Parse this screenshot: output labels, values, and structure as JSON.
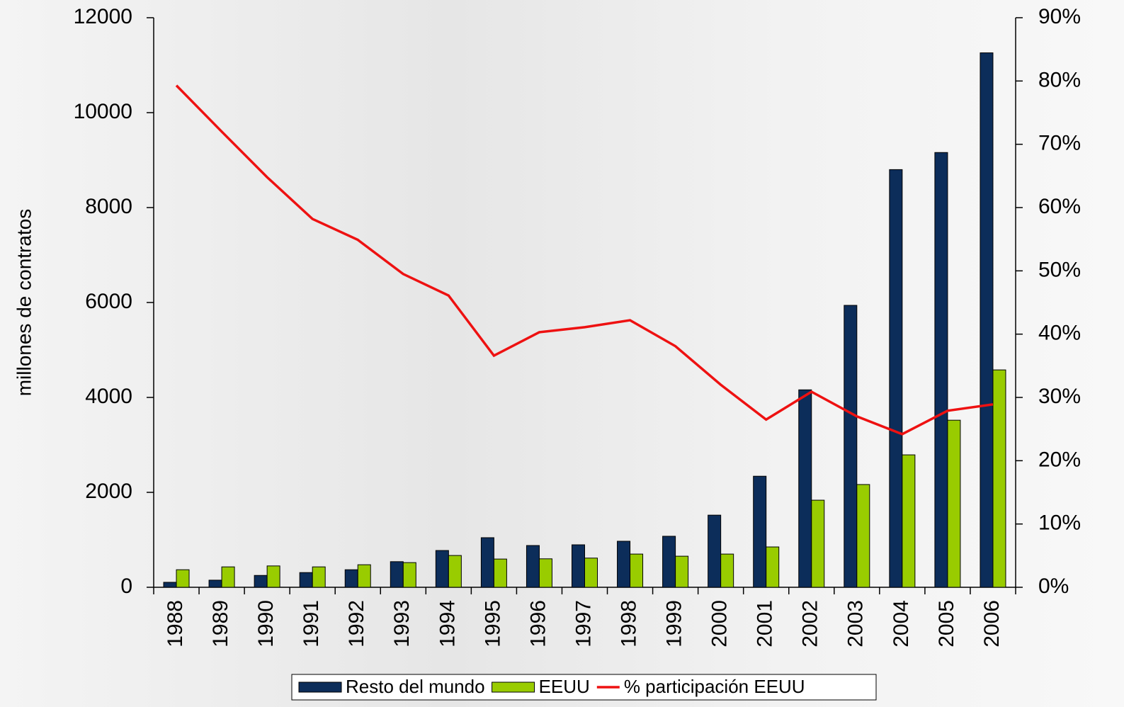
{
  "chart_data": {
    "type": "bar",
    "y_label": "millones de contratos",
    "categories": [
      "1988",
      "1989",
      "1990",
      "1991",
      "1992",
      "1993",
      "1994",
      "1995",
      "1996",
      "1997",
      "1998",
      "1999",
      "2000",
      "2001",
      "2002",
      "2003",
      "2004",
      "2005",
      "2006"
    ],
    "series": [
      {
        "name": "Resto del mundo",
        "color": "#0c2d5a",
        "values": [
          105,
          150,
          250,
          310,
          370,
          540,
          775,
          1045,
          880,
          895,
          970,
          1075,
          1520,
          2340,
          4160,
          5940,
          8800,
          9160,
          11260
        ]
      },
      {
        "name": "EEUU",
        "color": "#99cc00",
        "values": [
          370,
          430,
          450,
          430,
          475,
          520,
          670,
          595,
          600,
          615,
          700,
          655,
          700,
          850,
          1835,
          2165,
          2790,
          3520,
          4580
        ]
      },
      {
        "name": "% participación EEUU",
        "color": "#ee1111",
        "type": "line",
        "axis": "y2",
        "values": [
          79.3,
          72,
          64.8,
          58.2,
          54.9,
          49.5,
          46.1,
          36.6,
          40.3,
          41.1,
          42.2,
          38.1,
          32,
          26.5,
          30.9,
          27,
          24.2,
          27.9,
          28.9
        ]
      }
    ],
    "ylim": [
      0,
      12000
    ],
    "yticks": [
      0,
      2000,
      4000,
      6000,
      8000,
      10000,
      12000
    ],
    "y2lim": [
      0,
      90
    ],
    "y2ticks": [
      {
        "value": 0,
        "label": "0%"
      },
      {
        "value": 10,
        "label": "10%"
      },
      {
        "value": 20,
        "label": "20%"
      },
      {
        "value": 30,
        "label": "30%"
      },
      {
        "value": 40,
        "label": "40%"
      },
      {
        "value": 50,
        "label": "50%"
      },
      {
        "value": 60,
        "label": "60%"
      },
      {
        "value": 70,
        "label": "70%"
      },
      {
        "value": 80,
        "label": "80%"
      },
      {
        "value": 90,
        "label": "90%"
      }
    ],
    "legend": "bottom"
  }
}
